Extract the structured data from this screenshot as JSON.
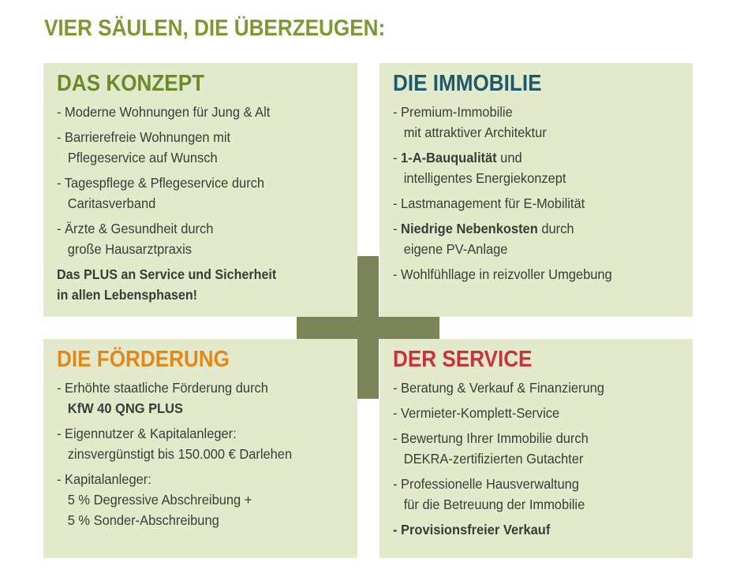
{
  "title": "VIER SÄULEN, DIE ÜBERZEUGEN:",
  "colors": {
    "title": "#7b9a30",
    "box_bg": "#e3eacb",
    "plus": "#7a8456",
    "konzept": "#6b8a2a",
    "immobilie": "#1e5a6e",
    "foerderung": "#e3871b",
    "service": "#c9313b"
  },
  "konzept": {
    "heading": "DAS KONZEPT",
    "items": [
      {
        "text": "- Moderne Wohnungen für Jung & Alt"
      },
      {
        "text": "- Barrierefreie Wohnungen mit\n   Pflegeservice auf Wunsch"
      },
      {
        "text": "- Tagespflege & Pflegeservice durch\n   Caritasverband"
      },
      {
        "text": "- Ärzte & Gesundheit durch\n   große Hausarztpraxis"
      }
    ],
    "plus": "Das PLUS an Service und Sicherheit\nin allen Lebensphasen!"
  },
  "immobilie": {
    "heading": "DIE IMMOBILIE",
    "items": [
      {
        "pre": "- Premium-Immobilie\n   mit attraktiver Architektur",
        "bold": "",
        "post": ""
      },
      {
        "pre": "- ",
        "bold": "1-A-Bauqualität",
        "post": " und\n   intelligentes Energiekonzept"
      },
      {
        "pre": "- Lastmanagement für E-Mobilität",
        "bold": "",
        "post": ""
      },
      {
        "pre": "- ",
        "bold": "Niedrige Nebenkosten",
        "post": " durch\n   eigene PV-Anlage"
      },
      {
        "pre": "- Wohlfühllage in reizvoller Umgebung",
        "bold": "",
        "post": ""
      }
    ]
  },
  "foerderung": {
    "heading": "DIE FÖRDERUNG",
    "items": [
      {
        "pre": "- Erhöhte staatliche Förderung durch\n   ",
        "bold": "KfW 40 QNG PLUS",
        "post": ""
      },
      {
        "pre": "- Eigennutzer & Kapitalanleger:\n   zinsvergünstigt bis 150.000 € Darlehen",
        "bold": "",
        "post": ""
      },
      {
        "pre": "- Kapitalanleger:\n   5 % Degressive Abschreibung +\n   5 % Sonder-Abschreibung",
        "bold": "",
        "post": ""
      }
    ]
  },
  "service": {
    "heading": "DER SERVICE",
    "items": [
      {
        "pre": "- Beratung & Verkauf & Finanzierung",
        "bold": "",
        "post": ""
      },
      {
        "pre": "- Vermieter-Komplett-Service",
        "bold": "",
        "post": ""
      },
      {
        "pre": "- Bewertung Ihrer Immobilie durch\n   DEKRA-zertifizierten Gutachter",
        "bold": "",
        "post": ""
      },
      {
        "pre": "- Professionelle Hausverwaltung\n   für die Betreuung der Immobilie",
        "bold": "",
        "post": ""
      },
      {
        "pre": "",
        "bold": "- Provisionsfreier Verkauf",
        "post": ""
      }
    ]
  }
}
